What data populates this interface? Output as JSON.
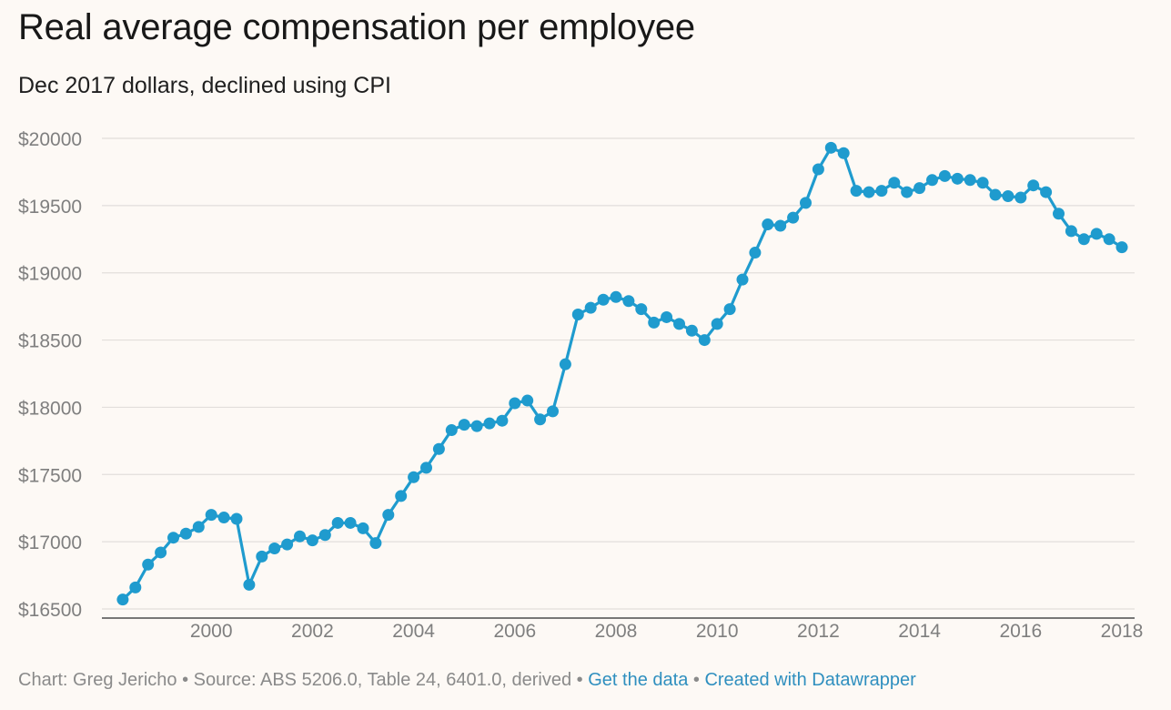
{
  "chart_data": {
    "type": "line",
    "title": "Real average compensation per employee",
    "subtitle": "Dec 2017 dollars, declined using CPI",
    "xlabel": "",
    "ylabel": "",
    "ylim": [
      16500,
      20000
    ],
    "xlim": [
      1998.0,
      2018.25
    ],
    "y_ticks": [
      16500,
      17000,
      17500,
      18000,
      18500,
      19000,
      19500,
      20000
    ],
    "y_tick_labels": [
      "$16500",
      "$17000",
      "$17500",
      "$18000",
      "$18500",
      "$19000",
      "$19500",
      "$20000"
    ],
    "x_ticks": [
      2000,
      2002,
      2004,
      2006,
      2008,
      2010,
      2012,
      2014,
      2016,
      2018
    ],
    "x_tick_labels": [
      "2000",
      "2002",
      "2004",
      "2006",
      "2008",
      "2010",
      "2012",
      "2014",
      "2016",
      "2018"
    ],
    "grid": true,
    "color": "#1f9bce",
    "series": [
      {
        "name": "Real average compensation per employee",
        "x": [
          1998.25,
          1998.5,
          1998.75,
          1999.0,
          1999.25,
          1999.5,
          1999.75,
          2000.0,
          2000.25,
          2000.5,
          2000.75,
          2001.0,
          2001.25,
          2001.5,
          2001.75,
          2002.0,
          2002.25,
          2002.5,
          2002.75,
          2003.0,
          2003.25,
          2003.5,
          2003.75,
          2004.0,
          2004.25,
          2004.5,
          2004.75,
          2005.0,
          2005.25,
          2005.5,
          2005.75,
          2006.0,
          2006.25,
          2006.5,
          2006.75,
          2007.0,
          2007.25,
          2007.5,
          2007.75,
          2008.0,
          2008.25,
          2008.5,
          2008.75,
          2009.0,
          2009.25,
          2009.5,
          2009.75,
          2010.0,
          2010.25,
          2010.5,
          2010.75,
          2011.0,
          2011.25,
          2011.5,
          2011.75,
          2012.0,
          2012.25,
          2012.5,
          2012.75,
          2013.0,
          2013.25,
          2013.5,
          2013.75,
          2014.0,
          2014.25,
          2014.5,
          2014.75,
          2015.0,
          2015.25,
          2015.5,
          2015.75,
          2016.0,
          2016.25,
          2016.5,
          2016.75,
          2017.0,
          2017.25,
          2017.5,
          2017.75,
          2018.0
        ],
        "values": [
          16570,
          16660,
          16830,
          16920,
          17030,
          17060,
          17110,
          17200,
          17180,
          17170,
          16680,
          16890,
          16950,
          16980,
          17040,
          17010,
          17050,
          17140,
          17140,
          17100,
          16990,
          17200,
          17340,
          17480,
          17550,
          17690,
          17830,
          17870,
          17860,
          17880,
          17900,
          18030,
          18050,
          17910,
          17970,
          18320,
          18690,
          18740,
          18800,
          18820,
          18790,
          18730,
          18630,
          18670,
          18620,
          18570,
          18500,
          18620,
          18730,
          18950,
          19150,
          19360,
          19350,
          19410,
          19520,
          19770,
          19930,
          19890,
          19610,
          19600,
          19610,
          19670,
          19600,
          19630,
          19690,
          19720,
          19700,
          19690,
          19670,
          19580,
          19570,
          19560,
          19650,
          19600,
          19440,
          19310,
          19250,
          19290,
          19250,
          19190
        ]
      }
    ]
  },
  "footer": {
    "attribution": "Chart: Greg Jericho • Source: ABS 5206.0, Table 24, 6401.0, derived • ",
    "data_link": "Get the data",
    "separator": " • ",
    "created_link": "Created with Datawrapper"
  }
}
